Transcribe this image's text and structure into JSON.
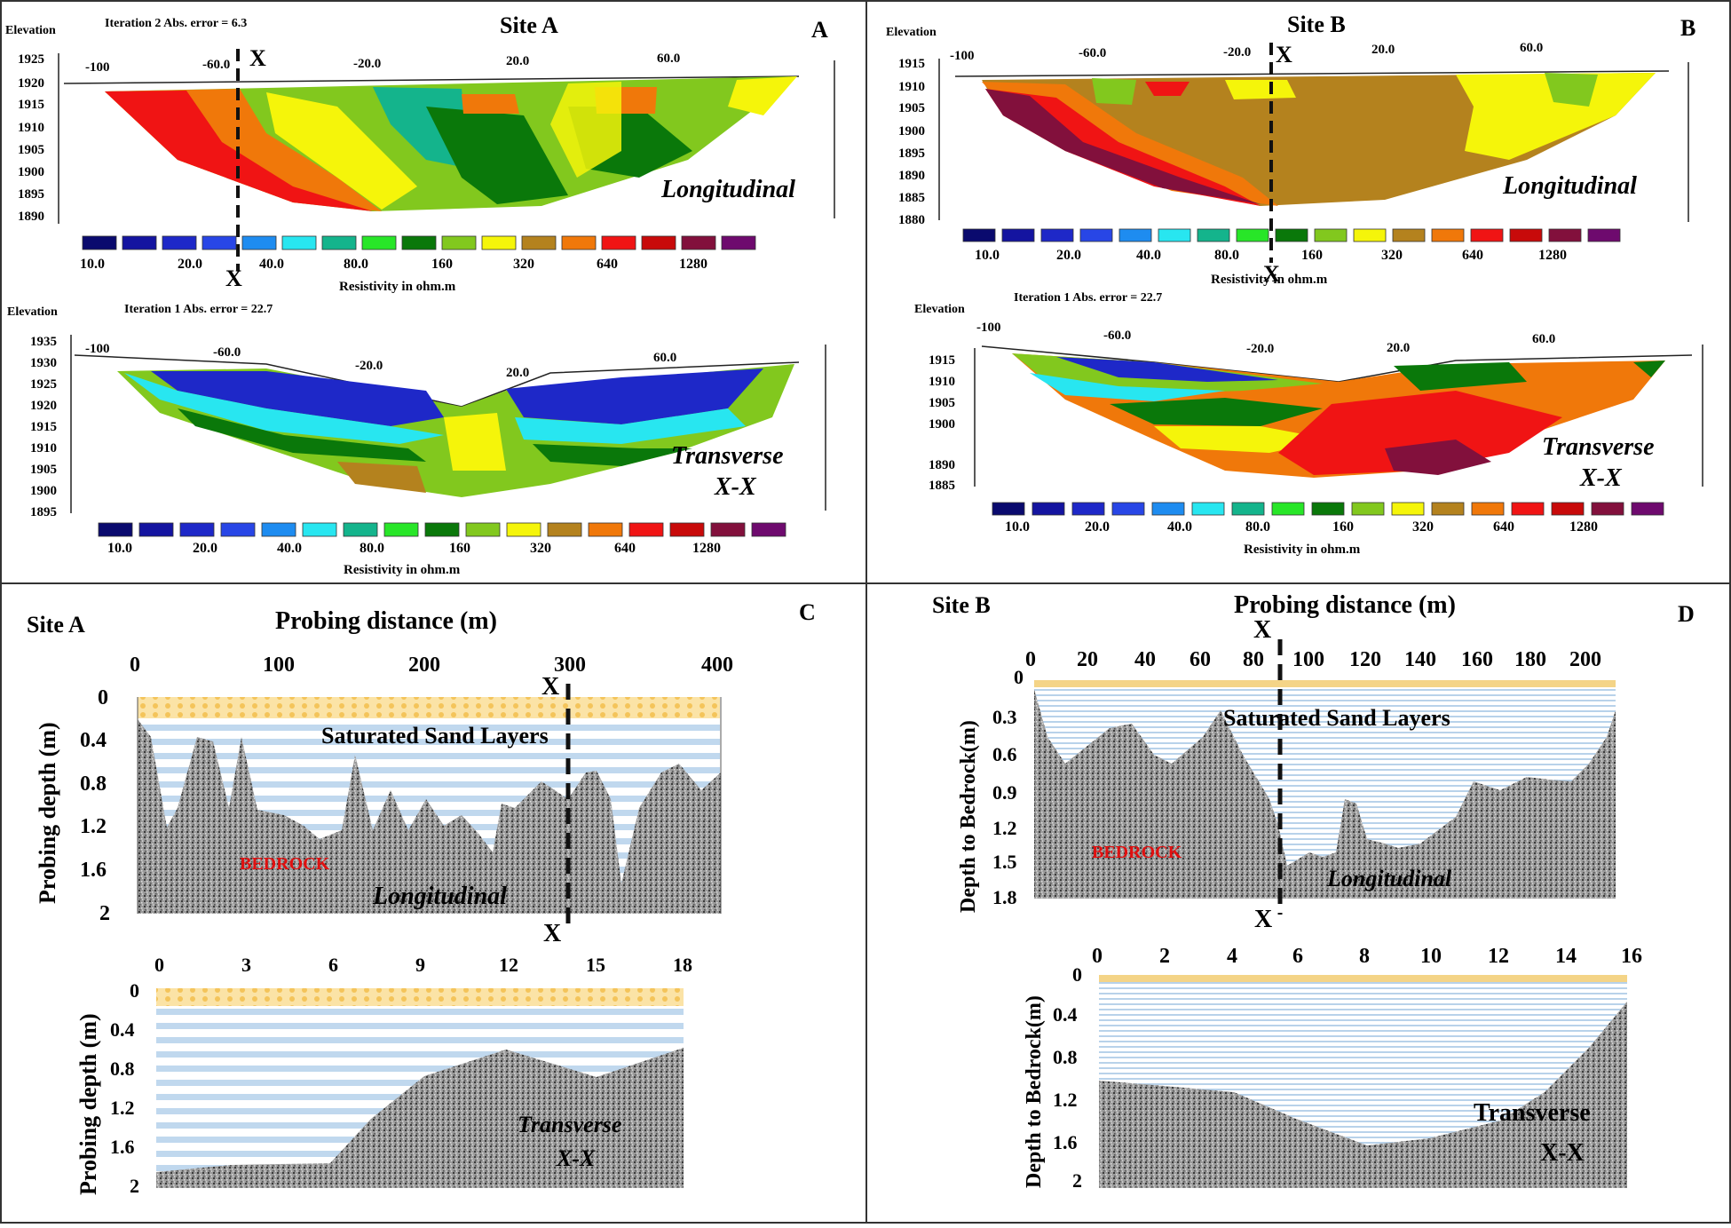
{
  "panels": {
    "A": {
      "letter": "A",
      "site_title": "Site A",
      "top": {
        "elevation_label": "Elevation",
        "iteration_text": "Iteration 2 Abs. error = 6.3",
        "x_ticks": [
          "-100",
          "-60.0",
          "-20.0",
          "20.0",
          "60.0"
        ],
        "y_ticks": [
          "1925",
          "1920",
          "1915",
          "1910",
          "1905",
          "1900",
          "1895",
          "1890"
        ],
        "label": "Longitudinal",
        "marker_top": "X",
        "marker_bottom": "X"
      },
      "bottom": {
        "elevation_label": "Elevation",
        "iteration_text": "Iteration 1 Abs. error = 22.7",
        "x_ticks": [
          "-100",
          "-60.0",
          "-20.0",
          "20.0",
          "60.0"
        ],
        "y_ticks": [
          "1935",
          "1930",
          "1925",
          "1920",
          "1915",
          "1910",
          "1905",
          "1900",
          "1895"
        ],
        "label_line1": "Transverse",
        "label_line2": "X-X"
      },
      "scale_labels": [
        "10.0",
        "20.0",
        "40.0",
        "80.0",
        "160",
        "320",
        "640",
        "1280"
      ],
      "scale_title": "Resistivity in ohm.m"
    },
    "B": {
      "letter": "B",
      "site_title": "Site B",
      "top": {
        "elevation_label": "Elevation",
        "x_ticks": [
          "-100",
          "-60.0",
          "-20.0",
          "20.0",
          "60.0"
        ],
        "y_ticks": [
          "1915",
          "1910",
          "1905",
          "1900",
          "1895",
          "1890",
          "1885",
          "1880"
        ],
        "label": "Longitudinal",
        "marker_top": "X",
        "marker_bottom": "X"
      },
      "bottom": {
        "elevation_label": "Elevation",
        "iteration_text": "Iteration 1 Abs. error = 22.7",
        "x_ticks": [
          "-100",
          "-60.0",
          "-20.0",
          "20.0",
          "60.0"
        ],
        "y_ticks": [
          "1915",
          "1910",
          "1905",
          "1900",
          "1890",
          "1885"
        ],
        "label_line1": "Transverse",
        "label_line2": "X-X"
      },
      "scale_labels": [
        "10.0",
        "20.0",
        "40.0",
        "80.0",
        "160",
        "320",
        "640",
        "1280"
      ],
      "scale_title": "Resistivity in ohm.m"
    },
    "C": {
      "letter": "C",
      "site_title": "Site A",
      "x_title": "Probing distance (m)",
      "top": {
        "x_ticks": [
          "0",
          "100",
          "200",
          "300",
          "400"
        ],
        "y_ticks": [
          "0",
          "0.4",
          "0.8",
          "1.2",
          "1.6",
          "2"
        ],
        "y_title": "Probing depth (m)",
        "sand_label": "Saturated Sand Layers",
        "bedrock_label": "BEDROCK",
        "label": "Longitudinal",
        "marker_top": "X",
        "marker_bottom": "X"
      },
      "bottom": {
        "x_ticks": [
          "0",
          "3",
          "6",
          "9",
          "12",
          "15",
          "18"
        ],
        "y_ticks": [
          "0",
          "0.4",
          "0.8",
          "1.2",
          "1.6",
          "2"
        ],
        "y_title": "Probing depth (m)",
        "label_line1": "Transverse",
        "label_line2": "X-X"
      }
    },
    "D": {
      "letter": "D",
      "site_title": "Site B",
      "x_title": "Probing distance (m)",
      "top": {
        "x_ticks": [
          "0",
          "20",
          "40",
          "60",
          "80",
          "100",
          "120",
          "140",
          "160",
          "180",
          "200"
        ],
        "y_ticks": [
          "0",
          "0.3",
          "0.6",
          "0.9",
          "1.2",
          "1.5",
          "1.8"
        ],
        "y_title": "Depth to Bedrock(m)",
        "sand_label": "Saturated Sand Layers",
        "bedrock_label": "BEDROCK",
        "label": "Longitudinal",
        "marker_top": "X",
        "marker_bottom": "X"
      },
      "bottom": {
        "x_ticks": [
          "0",
          "2",
          "4",
          "6",
          "8",
          "10",
          "12",
          "14",
          "16"
        ],
        "y_ticks": [
          "0",
          "0.4",
          "0.8",
          "1.2",
          "1.6",
          "2"
        ],
        "y_title": "Depth to Bedrock(m)",
        "label_line1": "Transverse",
        "label_line2": "X-X"
      }
    }
  },
  "scale_colors": [
    "#0a0a6e",
    "#1414a0",
    "#1e28c8",
    "#2846e6",
    "#1e8cf0",
    "#28e6f0",
    "#14b48c",
    "#28e628",
    "#0a780a",
    "#82c81e",
    "#f5f50a",
    "#b4821e",
    "#f0780a",
    "#f01414",
    "#c80a0a",
    "#82103c",
    "#6e0a6e"
  ],
  "colors": {
    "frame": "#222222",
    "rock": "#8c8c8c",
    "sand_stripe": "#bcd6ee",
    "soil_top": "#f4d487",
    "bedrock_text": "#e01010"
  }
}
